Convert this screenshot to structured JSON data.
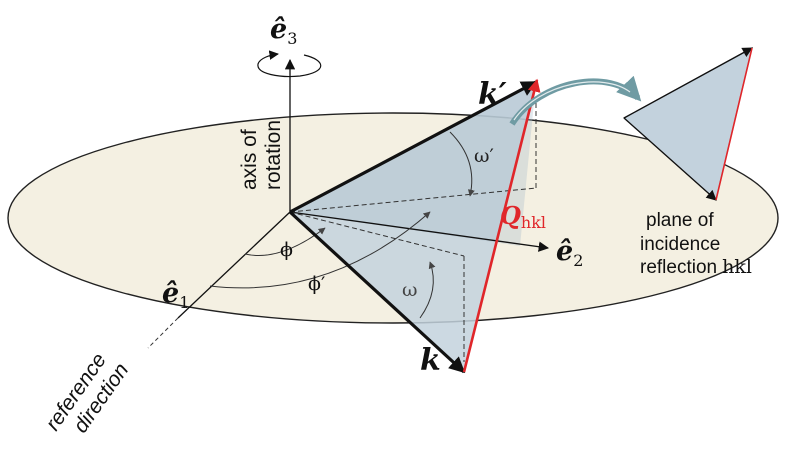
{
  "labels": {
    "e3": "ê",
    "e3_sub": "3",
    "e1": "ê",
    "e1_sub": "1",
    "e2": "ê",
    "e2_sub": "2",
    "axis_line1": "axis of",
    "axis_line2": "rotation",
    "k_prime": "k′",
    "k": "k",
    "q": "Q",
    "q_sub": "hkl",
    "omega_prime": "ω′",
    "omega": "ω",
    "phi": "ϕ",
    "phi_prime": "ϕ′",
    "reference_line1": "reference",
    "reference_line2": "direction",
    "plane_line1": "plane of",
    "plane_line2": "incidence",
    "plane_line3": "reflection",
    "plane_line3_hkl": "hkl"
  },
  "colors": {
    "disk_fill": "#f4f0e2",
    "plane_fill": "#c3d2dd",
    "q_red": "#e0262a",
    "arrow_teal": "#6f9ba3",
    "ink": "#111111"
  }
}
